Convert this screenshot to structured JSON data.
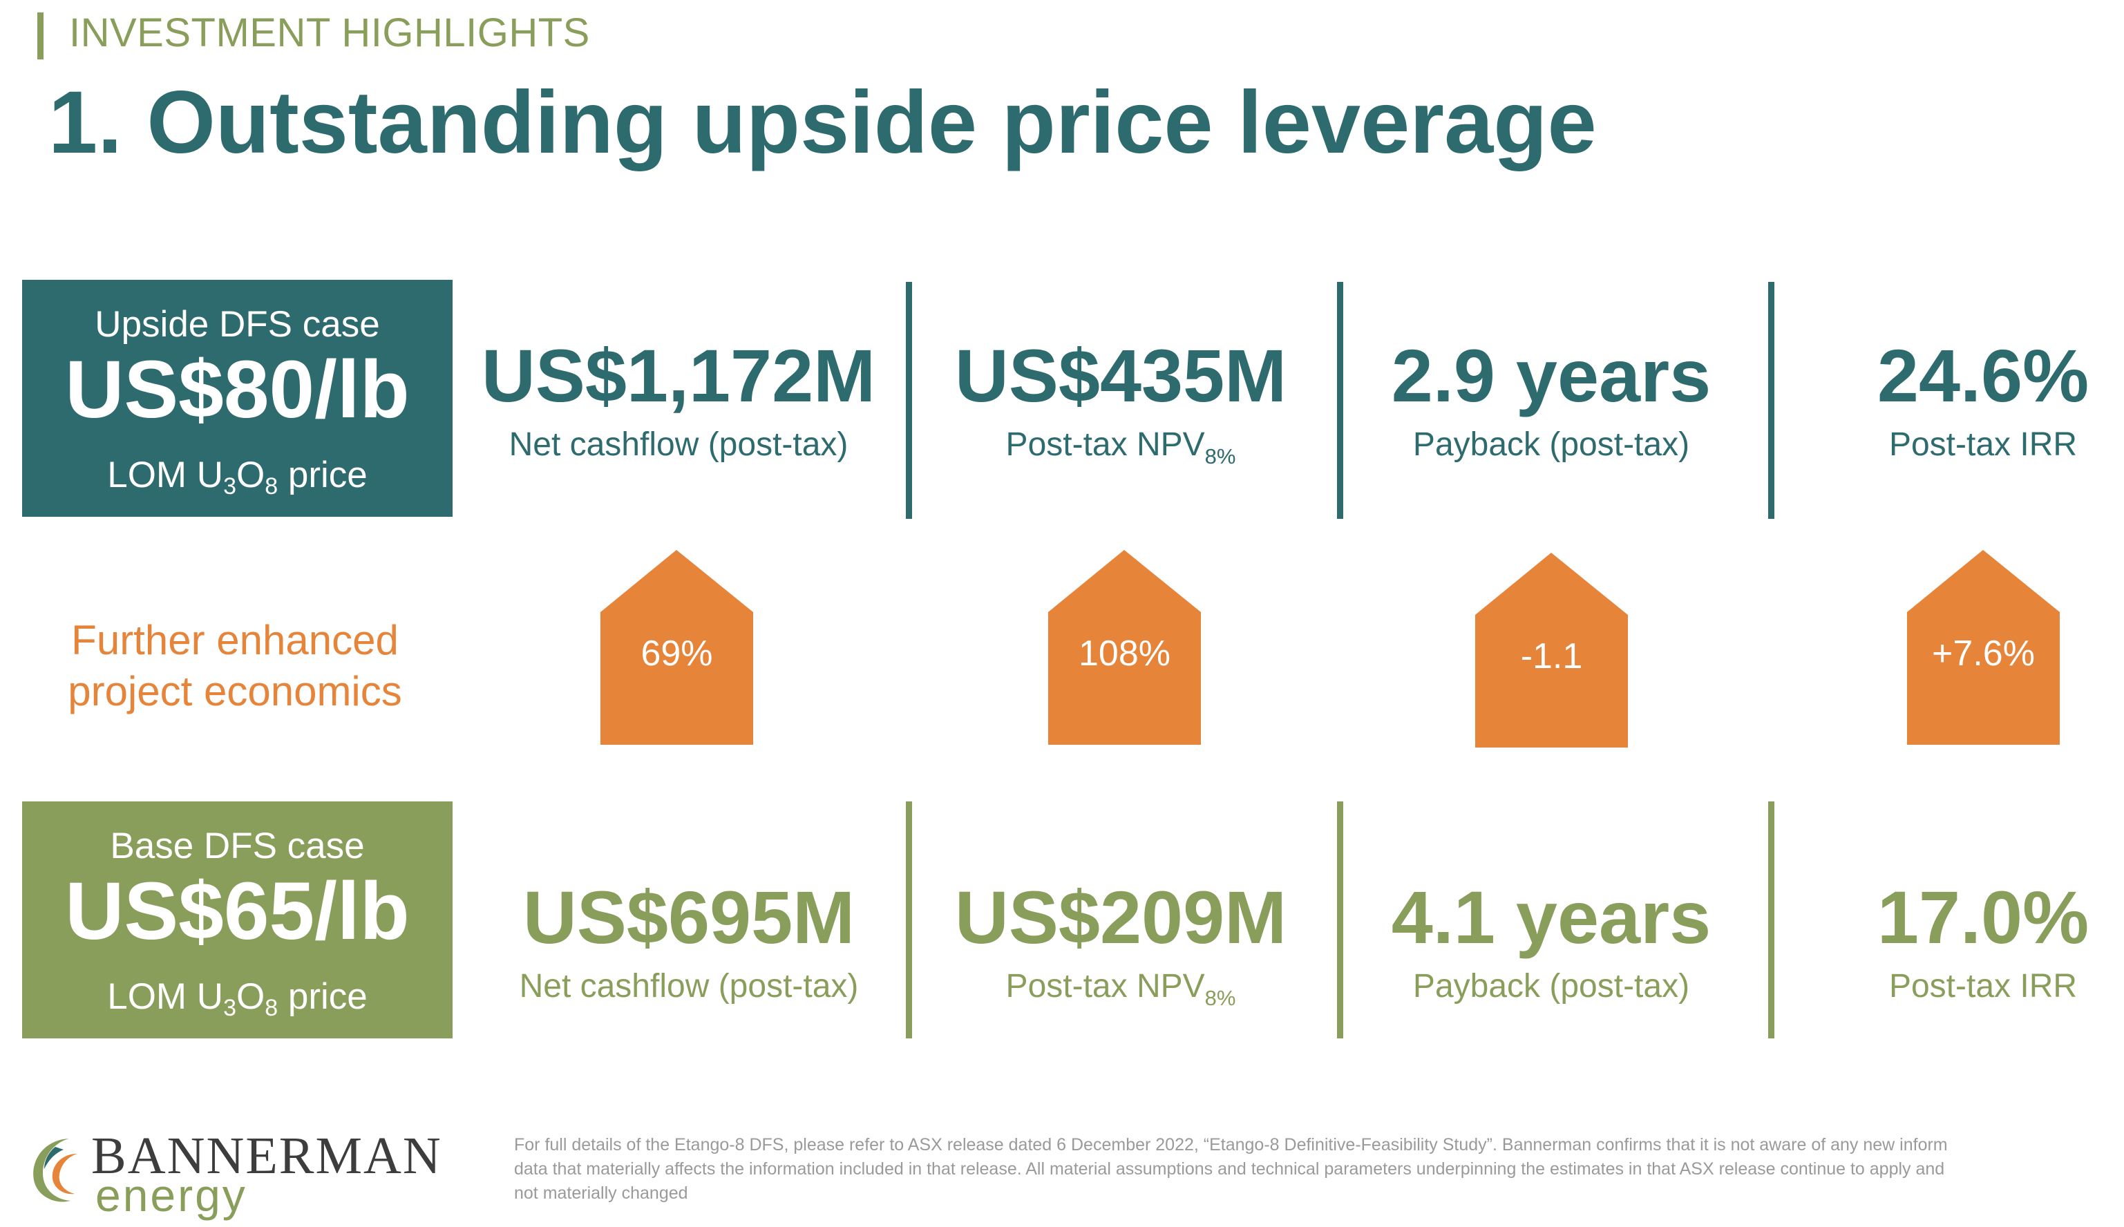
{
  "header": {
    "kicker": "INVESTMENT HIGHLIGHTS",
    "title": "1. Outstanding upside price leverage"
  },
  "upside_case": {
    "line1": "Upside DFS case",
    "price": "US$80/lb",
    "line3_a": "LOM U",
    "line3_sub1": "3",
    "line3_b": "O",
    "line3_sub2": "8",
    "line3_c": " price",
    "metrics": [
      {
        "value": "US$1,172M",
        "label": "Net cashflow (post-tax)",
        "label_sub": ""
      },
      {
        "value": "US$435M",
        "label": "Post-tax NPV",
        "label_sub": "8%"
      },
      {
        "value": "2.9 years",
        "label": "Payback (post-tax)",
        "label_sub": ""
      },
      {
        "value": "24.6%",
        "label": "Post-tax IRR",
        "label_sub": ""
      }
    ]
  },
  "middle": {
    "label_line1": "Further enhanced",
    "label_line2": "project economics",
    "changes": [
      "69%",
      "108%",
      "-1.1",
      "+7.6%"
    ]
  },
  "base_case": {
    "line1": "Base DFS case",
    "price": "US$65/lb",
    "line3_a": "LOM U",
    "line3_sub1": "3",
    "line3_b": "O",
    "line3_sub2": "8",
    "line3_c": " price",
    "metrics": [
      {
        "value": "US$695M",
        "label": "Net cashflow (post-tax)",
        "label_sub": ""
      },
      {
        "value": "US$209M",
        "label": "Post-tax NPV",
        "label_sub": "8%"
      },
      {
        "value": "4.1 years",
        "label": "Payback (post-tax)",
        "label_sub": ""
      },
      {
        "value": "17.0%",
        "label": "Post-tax IRR",
        "label_sub": ""
      }
    ]
  },
  "footer": {
    "logo_name": "BANNERMAN",
    "logo_sub": "energy",
    "disclaimer_1": "For full details of the Etango-8 DFS, please refer to ASX release dated 6 December 2022, “Etango-8 Definitive-Feasibility Study”. Bannerman confirms that it is not aware of any new inform",
    "disclaimer_2": "data that materially affects the information included in that release.  All material assumptions and technical parameters underpinning the estimates in that ASX release continue to apply and",
    "disclaimer_3": "not materially changed"
  },
  "colors": {
    "teal": "#2e6b6e",
    "olive": "#8a9e5b",
    "orange": "#e6843a"
  }
}
